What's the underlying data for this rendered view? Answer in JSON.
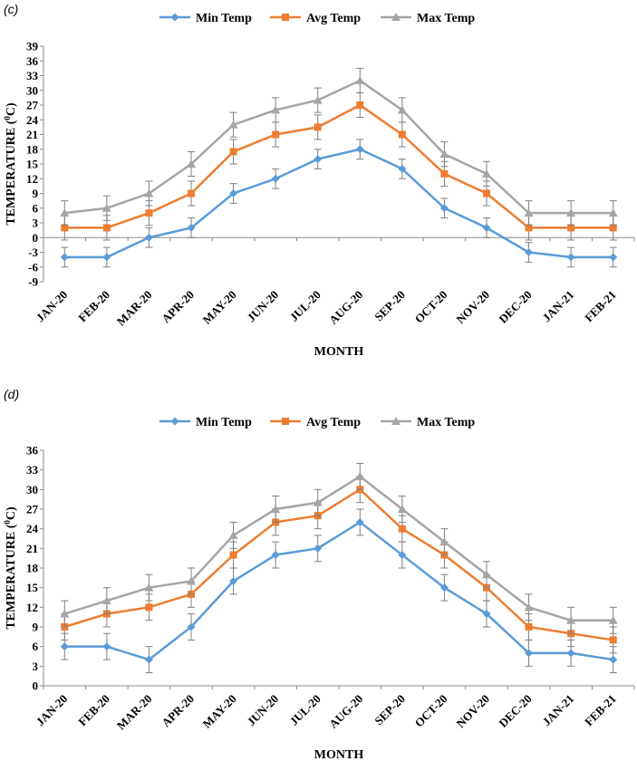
{
  "chart_data": [
    {
      "type": "line",
      "panel_label": "(c)",
      "categories": [
        "JAN-20",
        "FEB-20",
        "MAR-20",
        "APR-20",
        "MAY-20",
        "JUN-20",
        "JUL-20",
        "AUG-20",
        "SEP-20",
        "OCT-20",
        "NOV-20",
        "DEC-20",
        "JAN-21",
        "FEB-21"
      ],
      "xlabel": "MONTH",
      "ylabel": "TEMPERATURE (⁰C)",
      "ylabel_main": "TEMPERATURE (",
      "ylabel_sup": "0",
      "ylabel_end": "C)",
      "ylim": [
        -9,
        39
      ],
      "yticks": [
        -9,
        -6,
        -3,
        0,
        3,
        6,
        9,
        12,
        15,
        18,
        21,
        24,
        27,
        30,
        33,
        36,
        39
      ],
      "grid": false,
      "legend_position": "top",
      "series": [
        {
          "name": "Min Temp",
          "color": "#5b9bd5",
          "marker": "diamond",
          "values": [
            -4,
            -4,
            0,
            2,
            9,
            12,
            16,
            18,
            14,
            6,
            2,
            -3,
            -4,
            -4
          ],
          "error": 2
        },
        {
          "name": "Avg Temp",
          "color": "#ed7d31",
          "marker": "square",
          "values": [
            2,
            2,
            5,
            9,
            17.5,
            21,
            22.5,
            27,
            21,
            13,
            9,
            2,
            2,
            2
          ],
          "error": 2.5
        },
        {
          "name": "Max Temp",
          "color": "#a5a5a5",
          "marker": "triangle",
          "values": [
            5,
            6,
            9,
            15,
            23,
            26,
            28,
            32,
            26,
            17,
            13,
            5,
            5,
            5
          ],
          "error": 2.5
        }
      ]
    },
    {
      "type": "line",
      "panel_label": "(d)",
      "categories": [
        "JAN-20",
        "FEB-20",
        "MAR-20",
        "APR-20",
        "MAY-20",
        "JUN-20",
        "JUL-20",
        "AUG-20",
        "SEP-20",
        "OCT-20",
        "NOV-20",
        "DEC-20",
        "JAN-21",
        "FEB-21"
      ],
      "xlabel": "MONTH",
      "ylabel": "TEMPERATURE (⁰C)",
      "ylabel_main": "TEMPERATURE (",
      "ylabel_sup": "0",
      "ylabel_end": "C)",
      "ylim": [
        0,
        36
      ],
      "yticks": [
        0,
        3,
        6,
        9,
        12,
        15,
        18,
        21,
        24,
        27,
        30,
        33,
        36
      ],
      "grid": false,
      "legend_position": "top",
      "series": [
        {
          "name": "Min Temp",
          "color": "#5b9bd5",
          "marker": "diamond",
          "values": [
            6,
            6,
            4,
            9,
            16,
            20,
            21,
            25,
            20,
            15,
            11,
            5,
            5,
            4
          ],
          "error": 2
        },
        {
          "name": "Avg Temp",
          "color": "#ed7d31",
          "marker": "square",
          "values": [
            9,
            11,
            12,
            14,
            20,
            25,
            26,
            30,
            24,
            20,
            15,
            9,
            8,
            7
          ],
          "error": 2
        },
        {
          "name": "Max Temp",
          "color": "#a5a5a5",
          "marker": "triangle",
          "values": [
            11,
            13,
            15,
            16,
            23,
            27,
            28,
            32,
            27,
            22,
            17,
            12,
            10,
            10
          ],
          "error": 2
        }
      ]
    }
  ]
}
